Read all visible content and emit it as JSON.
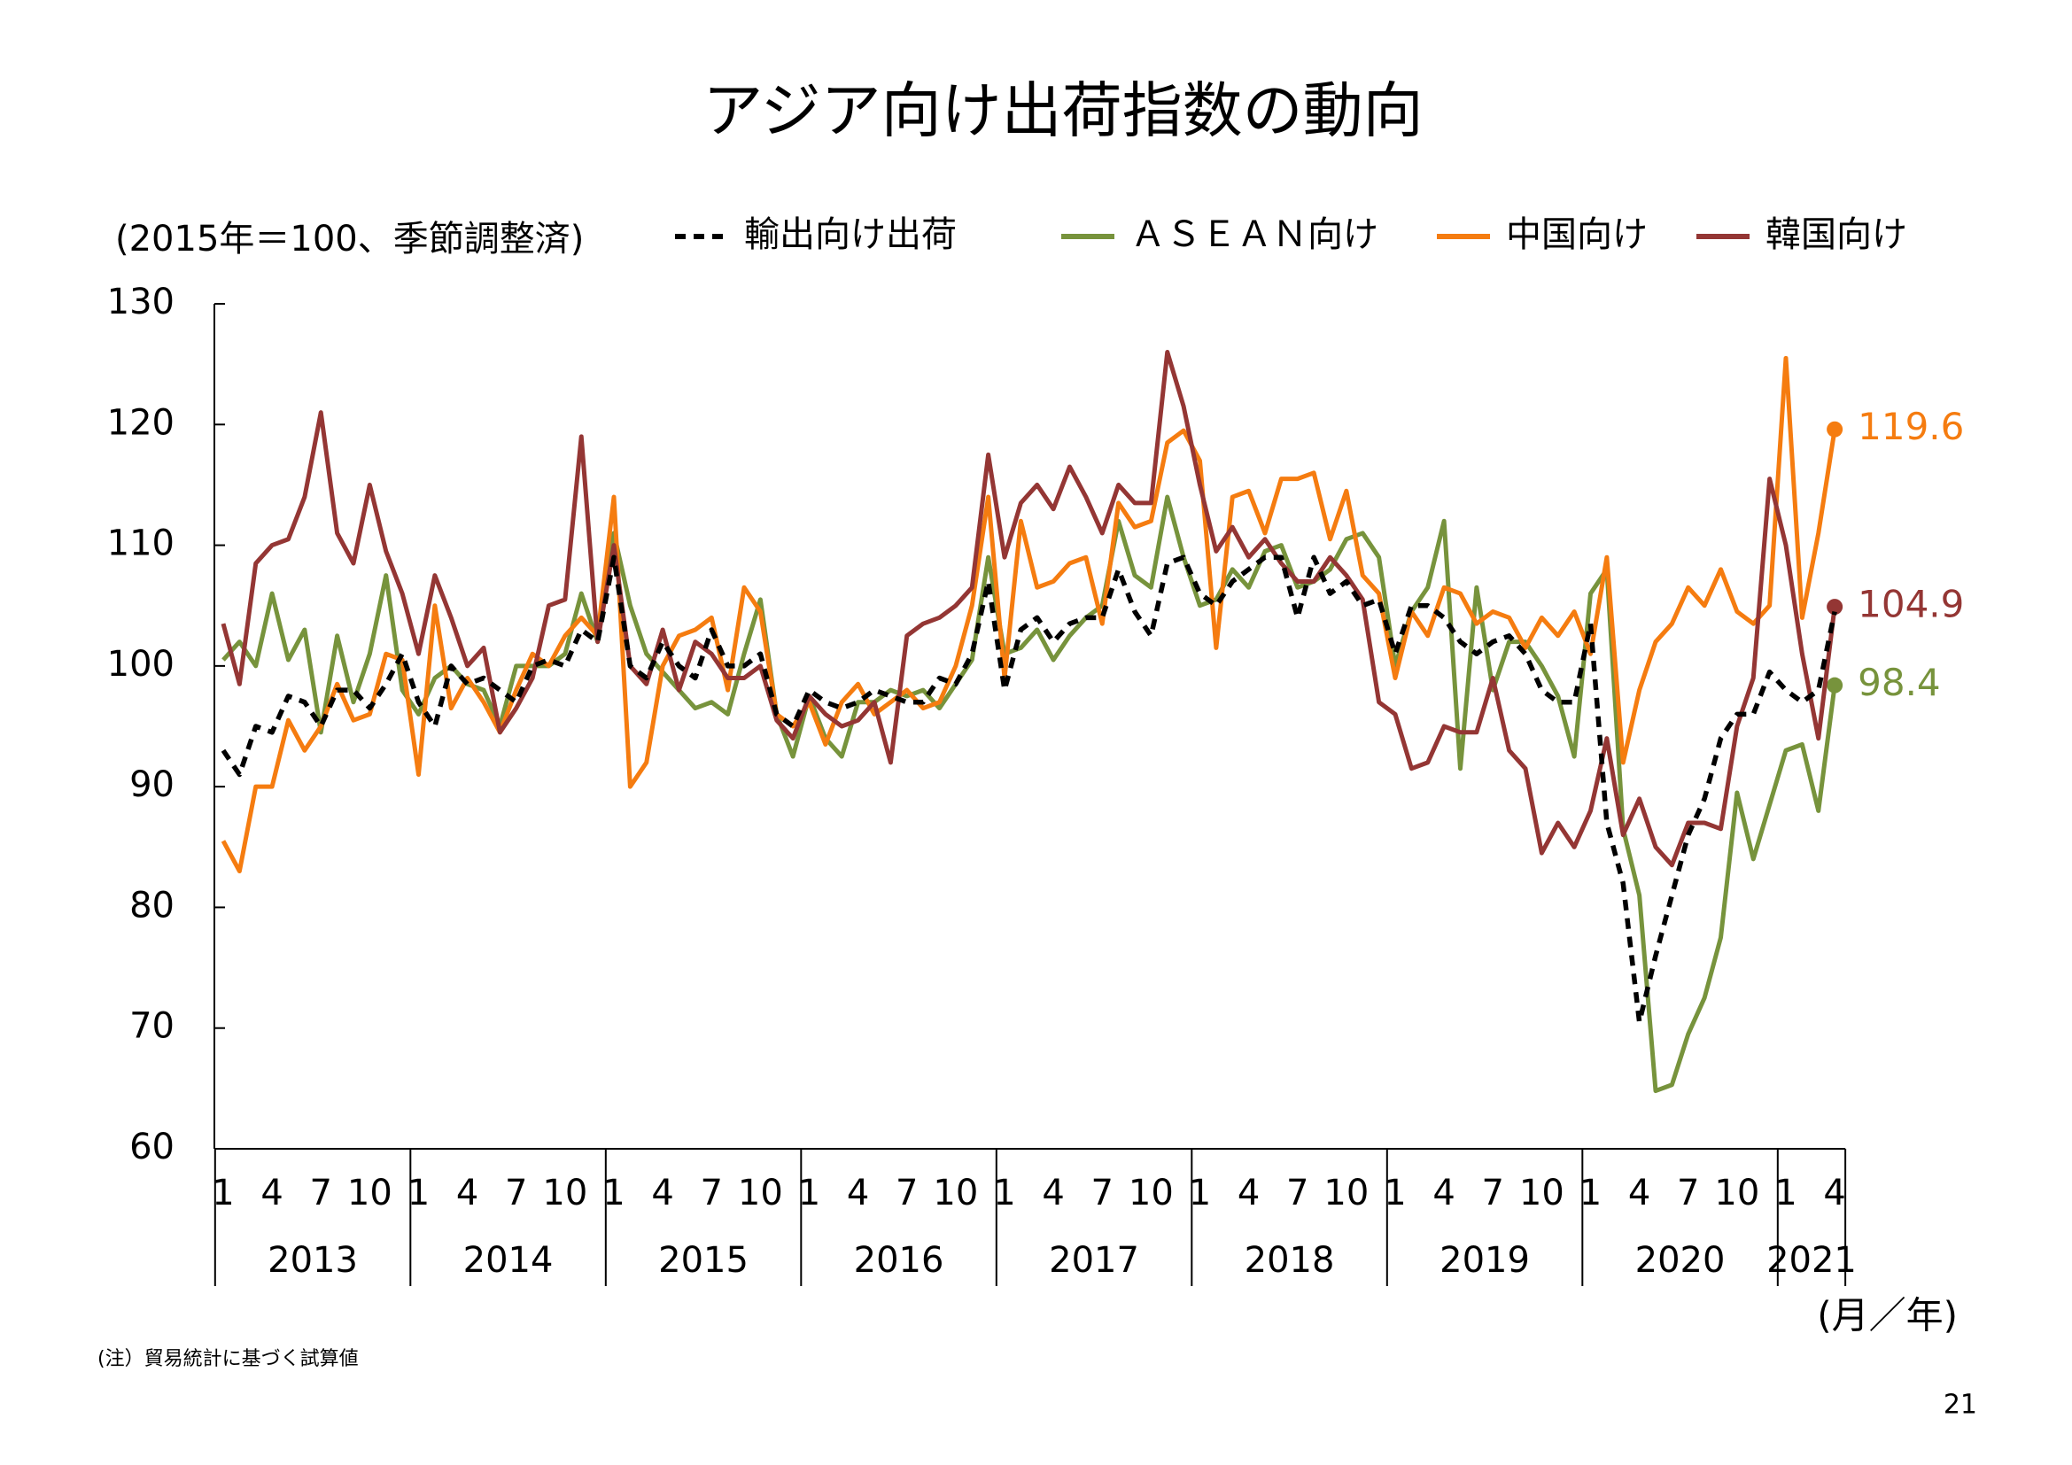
{
  "chart_data": {
    "type": "line",
    "title": "アジア向け出荷指数の動向",
    "y_label": "(2015年＝100、季節調整済)",
    "x_label": "(月／年)",
    "note": "(注）貿易統計に基づく試算値",
    "page_number": "21",
    "categories": [
      "1",
      null,
      null,
      "4",
      null,
      null,
      "7",
      null,
      null,
      "10",
      null,
      null,
      "1",
      null,
      null,
      "4",
      null,
      null,
      "7",
      null,
      null,
      "10",
      null,
      null,
      "1",
      null,
      null,
      "4",
      null,
      null,
      "7",
      null,
      null,
      "10",
      null,
      null,
      "1",
      null,
      null,
      "4",
      null,
      null,
      "7",
      null,
      null,
      "10",
      null,
      null,
      "1",
      null,
      null,
      "4",
      null,
      null,
      "7",
      null,
      null,
      "10",
      null,
      null,
      "1",
      null,
      null,
      "4",
      null,
      null,
      "7",
      null,
      null,
      "10",
      null,
      null,
      "1",
      null,
      null,
      "4",
      null,
      null,
      "7",
      null,
      null,
      "10",
      null,
      null,
      "1",
      null,
      null,
      "4",
      null,
      null,
      "7",
      null,
      null,
      "10",
      null,
      null,
      "1",
      null,
      null,
      "4"
    ],
    "years": [
      "2013",
      "2014",
      "2015",
      "2016",
      "2017",
      "2018",
      "2019",
      "2020",
      "2021"
    ],
    "ylim": [
      60,
      130
    ],
    "yticks": [
      60,
      70,
      80,
      90,
      100,
      110,
      120,
      130
    ],
    "series": [
      {
        "name": "輸出向け出荷",
        "color": "#000000",
        "style": "dashed",
        "values": [
          93,
          91,
          95,
          94.5,
          97.5,
          97,
          95,
          98,
          98,
          96.5,
          98.5,
          101,
          97,
          95,
          100,
          98.5,
          99,
          98,
          97,
          100,
          100.5,
          100,
          103,
          102,
          109,
          100,
          99,
          102,
          100,
          99,
          103,
          100,
          100,
          101,
          96,
          95,
          98,
          97,
          96.5,
          97,
          98,
          97.5,
          97,
          97,
          99,
          98.5,
          101,
          107,
          98,
          103,
          104,
          102,
          103.5,
          104,
          104,
          108,
          104.5,
          102.5,
          108.5,
          109,
          106,
          105,
          107,
          108,
          109,
          109,
          104,
          109,
          106,
          107,
          105,
          105.5,
          101,
          105,
          105,
          104,
          102,
          101,
          102,
          102.5,
          101,
          98,
          97,
          97,
          103.5,
          87,
          82,
          70.5,
          76,
          81,
          86,
          89,
          94,
          96,
          96,
          99.5,
          98,
          97,
          98,
          104.5
        ]
      },
      {
        "name": "ＡＳＥＡＮ向け",
        "color": "#77933c",
        "style": "solid",
        "end_label": "98.4",
        "values": [
          100.5,
          102,
          100,
          106,
          100.5,
          103,
          94.5,
          102.5,
          97,
          101,
          107.5,
          98,
          96,
          99,
          100,
          98.5,
          98,
          95,
          100,
          100,
          100,
          101,
          106,
          102,
          111,
          105,
          101,
          99.5,
          98,
          96.5,
          97,
          96,
          101,
          105.5,
          96,
          92.5,
          97.5,
          94,
          92.5,
          97,
          97,
          98,
          97.5,
          98,
          96.5,
          98.5,
          100.5,
          109,
          101,
          101.5,
          103,
          100.5,
          102.5,
          104,
          105,
          112,
          107.5,
          106.5,
          114,
          109,
          105,
          105.5,
          108,
          106.5,
          109.5,
          110,
          106.5,
          107,
          108,
          110.5,
          111,
          109,
          100,
          104.5,
          106.5,
          112,
          91.5,
          106.5,
          98,
          102,
          102,
          100,
          97.5,
          92.5,
          106,
          108,
          86.5,
          81,
          64.8,
          65.3,
          69.5,
          72.5,
          77.5,
          89.5,
          84,
          88.5,
          93,
          93.5,
          88,
          98.4
        ]
      },
      {
        "name": "中国向け",
        "color": "#f57c10",
        "style": "solid",
        "end_label": "119.6",
        "values": [
          85.5,
          83,
          90,
          90,
          95.5,
          93,
          95,
          98.5,
          95.5,
          96,
          101,
          100.5,
          91,
          105,
          96.5,
          99,
          97,
          94.5,
          98,
          101,
          100,
          102.5,
          104,
          102.5,
          114,
          90,
          92,
          100,
          102.5,
          103,
          104,
          98,
          106.5,
          104.5,
          96,
          95,
          97,
          93.5,
          97,
          98.5,
          96,
          97,
          98,
          96.5,
          97,
          100,
          105,
          114,
          99,
          112,
          106.5,
          107,
          108.5,
          109,
          103.5,
          113.5,
          111.5,
          112,
          118.5,
          119.5,
          117,
          101.5,
          114,
          114.5,
          111,
          115.5,
          115.5,
          116,
          110.5,
          114.5,
          107.5,
          106,
          99,
          104.5,
          102.5,
          106.5,
          106,
          103.5,
          104.5,
          104,
          101.5,
          104,
          102.5,
          104.5,
          101,
          109,
          92,
          98,
          102,
          103.5,
          106.5,
          105,
          108,
          104.5,
          103.5,
          105,
          125.5,
          104,
          111,
          119.6
        ]
      },
      {
        "name": "韓国向け",
        "color": "#943634",
        "style": "solid",
        "end_label": "104.9",
        "values": [
          103.5,
          98.5,
          108.5,
          110,
          110.5,
          114,
          121,
          111,
          108.5,
          115,
          109.5,
          106,
          101,
          107.5,
          104,
          100,
          101.5,
          94.5,
          96.5,
          99,
          105,
          105.5,
          119,
          102,
          110,
          100,
          98.5,
          103,
          98,
          102,
          101,
          99,
          99,
          100,
          95.5,
          94,
          97.5,
          96,
          95,
          95.5,
          97,
          92,
          102.5,
          103.5,
          104,
          105,
          106.5,
          117.5,
          109,
          113.5,
          115,
          113,
          116.5,
          114,
          111,
          115,
          113.5,
          113.5,
          126,
          121.5,
          115,
          109.5,
          111.5,
          109,
          110.5,
          108.5,
          107,
          107,
          109,
          107.5,
          105.5,
          97,
          96,
          91.5,
          92,
          95,
          94.5,
          94.5,
          99,
          93,
          91.5,
          84.5,
          87,
          85,
          88,
          94,
          86,
          89,
          85,
          83.5,
          87,
          87,
          86.5,
          95,
          99,
          115.5,
          110,
          101,
          94,
          104.9
        ]
      }
    ]
  }
}
